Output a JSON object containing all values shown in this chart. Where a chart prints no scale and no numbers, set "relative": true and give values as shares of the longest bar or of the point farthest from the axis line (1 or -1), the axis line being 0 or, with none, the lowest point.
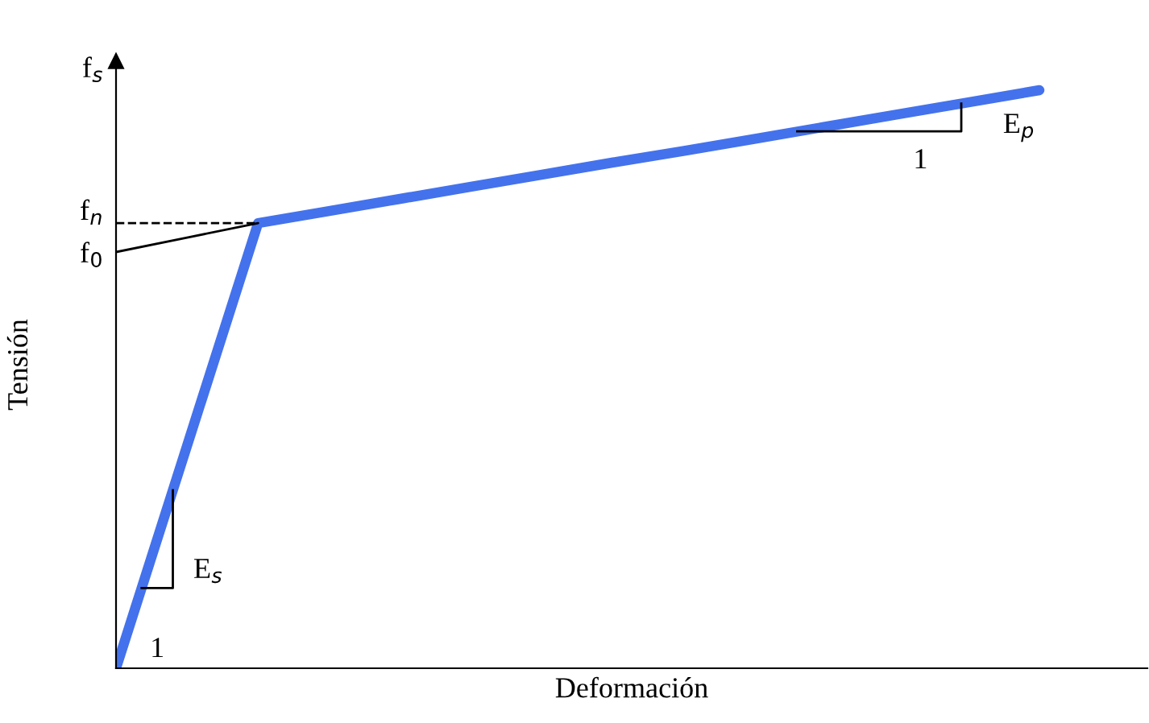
{
  "chart_data": {
    "type": "line",
    "relative": true,
    "xlabel": "Deformación",
    "ylabel": "Tensión",
    "categories": [
      null,
      null,
      null,
      null,
      null,
      null,
      null,
      null,
      null,
      null,
      null,
      null,
      null,
      null
    ],
    "series": [
      {
        "color": "#4472ed",
        "values": [
          0,
          0.385,
          0.77,
          0.791,
          0.812,
          0.833,
          0.854,
          0.875,
          0.895,
          0.916,
          0.937,
          0.958,
          0.979,
          1.0
        ]
      },
      {
        "color": "#000000",
        "values": [
          0.72,
          0.745,
          0.77,
          null,
          null,
          null,
          null,
          null,
          null,
          null,
          null,
          null,
          null,
          null
        ]
      },
      {
        "color": "#000000",
        "line_style": "dashed",
        "values": [
          0.77,
          0.77,
          0.77,
          null,
          null,
          null,
          null,
          null,
          null,
          null,
          null,
          null,
          null,
          null
        ]
      }
    ],
    "annotations": [
      "f$_{s}$",
      "f$_{n}$",
      "f$_{0}$",
      "E$_{s}$",
      "1",
      "E$_{p}$",
      "1"
    ]
  }
}
